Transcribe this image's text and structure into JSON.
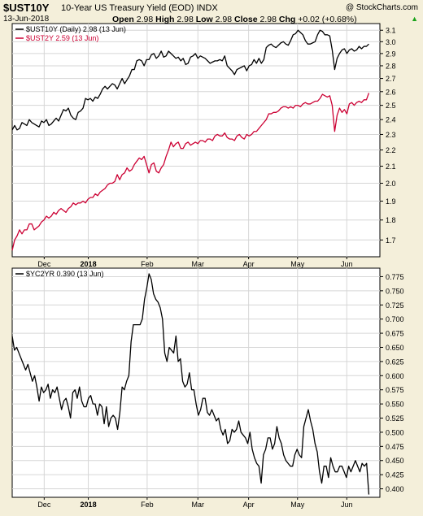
{
  "header": {
    "symbol": "$UST10Y",
    "title": "10-Year US Treasury Yield (EOD)  INDX",
    "date": "13-Jun-2018",
    "watermark": "@ StockCharts.com",
    "open_label": "Open",
    "open": "2.98",
    "high_label": "High",
    "high": "2.98",
    "low_label": "Low",
    "low": "2.98",
    "close_label": "Close",
    "close": "2.98",
    "chg_label": "Chg",
    "chg": "+0.02 (+0.68%)",
    "chg_arrow": "▲"
  },
  "colors": {
    "background": "#f4efda",
    "plot_bg": "#ffffff",
    "grid": "#d6d6d6",
    "ust10y": "#000000",
    "ust2y": "#cc0033",
    "up": "#1aa31a"
  },
  "chart_data": [
    {
      "type": "line",
      "x_tick_labels": [
        "Dec",
        "2018",
        "Feb",
        "Mar",
        "Apr",
        "May",
        "Jun"
      ],
      "y_ticks": [
        "1.7",
        "1.8",
        "1.9",
        "2.0",
        "2.1",
        "2.2",
        "2.3",
        "2.4",
        "2.5",
        "2.6",
        "2.7",
        "2.8",
        "2.9",
        "3.0",
        "3.1"
      ],
      "ylim": [
        1.62,
        3.16
      ],
      "y_scale": "log",
      "grid": true,
      "legend": "top-left",
      "series": [
        {
          "name": "$UST10Y (Daily) 2.98 (13 Jun)",
          "color": "#000000",
          "values": [
            2.33,
            2.36,
            2.33,
            2.34,
            2.38,
            2.37,
            2.36,
            2.4,
            2.38,
            2.37,
            2.36,
            2.35,
            2.39,
            2.38,
            2.4,
            2.36,
            2.37,
            2.39,
            2.41,
            2.39,
            2.43,
            2.47,
            2.46,
            2.48,
            2.43,
            2.41,
            2.4,
            2.45,
            2.46,
            2.48,
            2.55,
            2.54,
            2.55,
            2.53,
            2.56,
            2.55,
            2.58,
            2.62,
            2.64,
            2.62,
            2.64,
            2.66,
            2.65,
            2.62,
            2.66,
            2.7,
            2.66,
            2.69,
            2.72,
            2.77,
            2.77,
            2.84,
            2.85,
            2.84,
            2.8,
            2.85,
            2.85,
            2.89,
            2.9,
            2.86,
            2.88,
            2.92,
            2.87,
            2.88,
            2.92,
            2.9,
            2.88,
            2.86,
            2.87,
            2.84,
            2.86,
            2.81,
            2.82,
            2.87,
            2.88,
            2.9,
            2.86,
            2.88,
            2.87,
            2.86,
            2.84,
            2.82,
            2.83,
            2.84,
            2.84,
            2.85,
            2.84,
            2.88,
            2.8,
            2.78,
            2.76,
            2.73,
            2.77,
            2.78,
            2.79,
            2.8,
            2.76,
            2.8,
            2.81,
            2.85,
            2.82,
            2.86,
            2.82,
            2.85,
            2.95,
            2.97,
            2.98,
            2.96,
            2.95,
            2.97,
            2.99,
            3.0,
            2.98,
            2.97,
            3.01,
            3.06,
            3.07,
            3.1,
            3.08,
            3.06,
            3.01,
            2.98,
            2.98,
            2.99,
            3.0,
            3.06,
            3.1,
            3.09,
            3.06,
            3.06,
            3.05,
            2.93,
            2.77,
            2.86,
            2.9,
            2.93,
            2.94,
            2.9,
            2.93,
            2.94,
            2.92,
            2.93,
            2.96,
            2.94,
            2.96,
            2.96,
            2.98
          ]
        },
        {
          "name": "$UST2Y 2.59 (13 Jun)",
          "color": "#cc0033",
          "values": [
            1.65,
            1.7,
            1.72,
            1.75,
            1.73,
            1.75,
            1.75,
            1.78,
            1.78,
            1.75,
            1.76,
            1.77,
            1.79,
            1.8,
            1.82,
            1.81,
            1.82,
            1.84,
            1.83,
            1.85,
            1.86,
            1.85,
            1.84,
            1.86,
            1.87,
            1.89,
            1.88,
            1.89,
            1.89,
            1.9,
            1.89,
            1.91,
            1.92,
            1.92,
            1.94,
            1.93,
            1.95,
            1.96,
            1.97,
            1.99,
            2.0,
            2.0,
            2.01,
            2.05,
            2.02,
            2.05,
            2.06,
            2.09,
            2.07,
            2.08,
            2.11,
            2.13,
            2.15,
            2.14,
            2.16,
            2.11,
            2.06,
            2.11,
            2.12,
            2.07,
            2.06,
            2.09,
            2.11,
            2.16,
            2.2,
            2.25,
            2.22,
            2.24,
            2.25,
            2.21,
            2.21,
            2.24,
            2.25,
            2.23,
            2.24,
            2.25,
            2.24,
            2.26,
            2.26,
            2.25,
            2.27,
            2.27,
            2.26,
            2.29,
            2.3,
            2.29,
            2.29,
            2.31,
            2.28,
            2.27,
            2.27,
            2.26,
            2.29,
            2.3,
            2.28,
            2.27,
            2.3,
            2.29,
            2.3,
            2.32,
            2.32,
            2.34,
            2.36,
            2.38,
            2.4,
            2.44,
            2.44,
            2.45,
            2.45,
            2.46,
            2.48,
            2.49,
            2.49,
            2.48,
            2.49,
            2.48,
            2.5,
            2.5,
            2.49,
            2.51,
            2.52,
            2.51,
            2.51,
            2.52,
            2.53,
            2.53,
            2.55,
            2.58,
            2.57,
            2.56,
            2.57,
            2.5,
            2.32,
            2.43,
            2.48,
            2.45,
            2.47,
            2.44,
            2.51,
            2.52,
            2.5,
            2.52,
            2.53,
            2.52,
            2.54,
            2.54,
            2.59
          ]
        }
      ]
    },
    {
      "type": "line",
      "x_tick_labels": [
        "Dec",
        "2018",
        "Feb",
        "Mar",
        "Apr",
        "May",
        "Jun"
      ],
      "y_ticks": [
        "0.400",
        "0.425",
        "0.450",
        "0.475",
        "0.500",
        "0.525",
        "0.550",
        "0.575",
        "0.600",
        "0.625",
        "0.650",
        "0.675",
        "0.700",
        "0.725",
        "0.750",
        "0.775"
      ],
      "ylim": [
        0.385,
        0.79
      ],
      "grid": true,
      "legend": "top-left",
      "series": [
        {
          "name": "$YC2YR 0.390 (13 Jun)",
          "color": "#000000",
          "values": [
            0.67,
            0.645,
            0.65,
            0.64,
            0.63,
            0.62,
            0.61,
            0.62,
            0.605,
            0.59,
            0.6,
            0.58,
            0.555,
            0.58,
            0.57,
            0.575,
            0.585,
            0.56,
            0.575,
            0.57,
            0.58,
            0.56,
            0.54,
            0.555,
            0.56,
            0.545,
            0.525,
            0.57,
            0.575,
            0.56,
            0.58,
            0.555,
            0.545,
            0.545,
            0.56,
            0.565,
            0.55,
            0.55,
            0.53,
            0.55,
            0.545,
            0.515,
            0.545,
            0.51,
            0.525,
            0.53,
            0.525,
            0.505,
            0.535,
            0.58,
            0.575,
            0.59,
            0.6,
            0.66,
            0.69,
            0.69,
            0.69,
            0.69,
            0.7,
            0.735,
            0.755,
            0.78,
            0.77,
            0.745,
            0.735,
            0.73,
            0.72,
            0.7,
            0.64,
            0.625,
            0.65,
            0.645,
            0.64,
            0.67,
            0.625,
            0.63,
            0.59,
            0.58,
            0.585,
            0.605,
            0.575,
            0.575,
            0.55,
            0.53,
            0.54,
            0.56,
            0.56,
            0.535,
            0.53,
            0.54,
            0.53,
            0.52,
            0.525,
            0.505,
            0.495,
            0.505,
            0.48,
            0.485,
            0.505,
            0.5,
            0.505,
            0.52,
            0.5,
            0.495,
            0.49,
            0.48,
            0.5,
            0.47,
            0.455,
            0.445,
            0.44,
            0.41,
            0.46,
            0.47,
            0.49,
            0.49,
            0.47,
            0.48,
            0.51,
            0.49,
            0.48,
            0.46,
            0.45,
            0.445,
            0.44,
            0.44,
            0.46,
            0.47,
            0.46,
            0.455,
            0.51,
            0.525,
            0.54,
            0.52,
            0.505,
            0.48,
            0.465,
            0.43,
            0.41,
            0.44,
            0.44,
            0.42,
            0.455,
            0.44,
            0.43,
            0.43,
            0.44,
            0.44,
            0.43,
            0.42,
            0.44,
            0.43,
            0.44,
            0.45,
            0.44,
            0.43,
            0.445,
            0.44,
            0.445,
            0.39
          ]
        }
      ]
    }
  ]
}
